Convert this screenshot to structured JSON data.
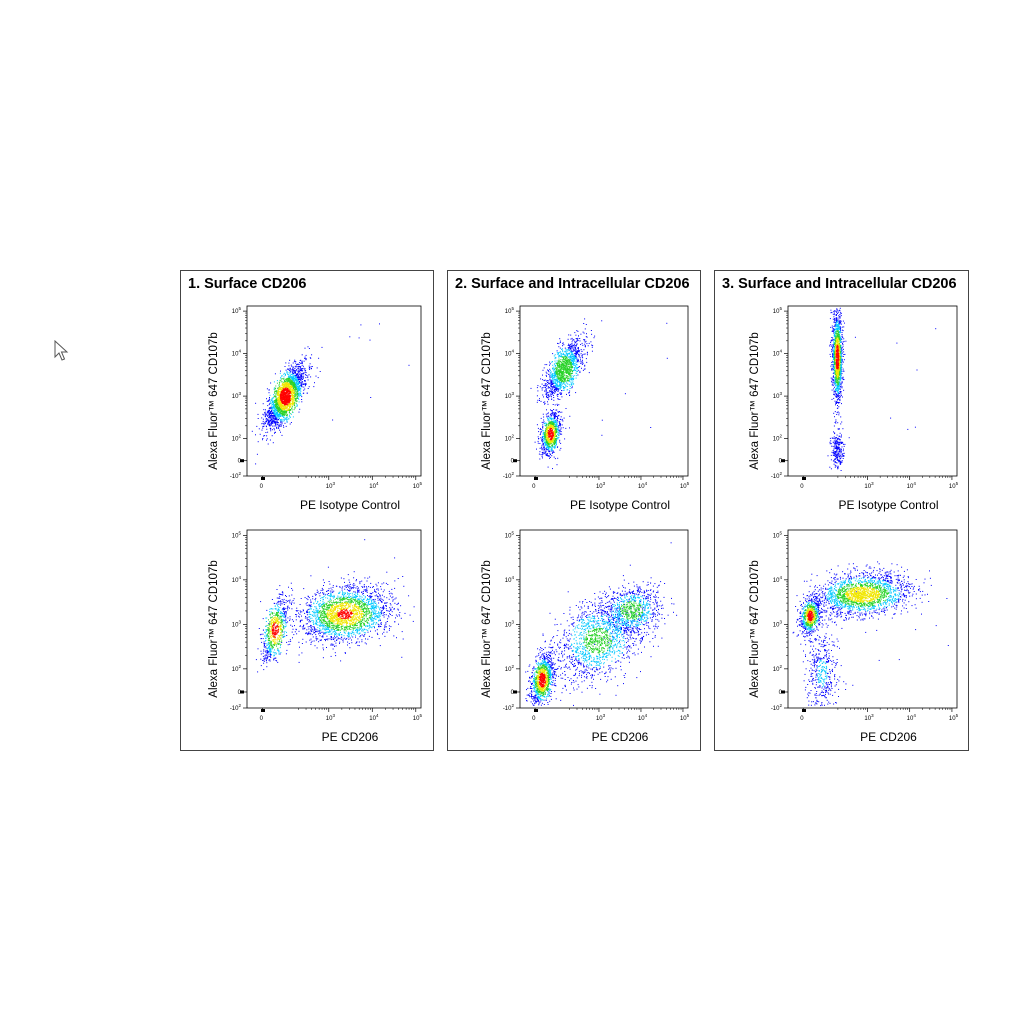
{
  "cursor_icon": "mouse-pointer-icon",
  "colors": {
    "low_density": "#0000ff",
    "mid_density": "#00c8ff",
    "mid_high_density": "#28d228",
    "high_density": "#f0e600",
    "peak_density": "#ff0000"
  },
  "panels": [
    {
      "title": "1. Surface CD206",
      "plots": [
        {
          "ylabel": "Alexa Fluor™ 647 CD107b",
          "xlabel": "PE Isotype Control"
        },
        {
          "ylabel": "Alexa Fluor™ 647 CD107b",
          "xlabel": "PE CD206"
        }
      ]
    },
    {
      "title": "2. Surface and Intracellular CD206",
      "plots": [
        {
          "ylabel": "Alexa Fluor™ 647 CD107b",
          "xlabel": "PE Isotype Control"
        },
        {
          "ylabel": "Alexa Fluor™ 647 CD107b",
          "xlabel": "PE CD206"
        }
      ]
    },
    {
      "title": "3. Surface and Intracellular CD206",
      "plots": [
        {
          "ylabel": "Alexa Fluor™ 647 CD107b",
          "xlabel": "PE Isotype Control"
        },
        {
          "ylabel": "Alexa Fluor™ 647 CD107b",
          "xlabel": "PE CD206"
        }
      ]
    }
  ],
  "chart_data": [
    {
      "type": "scatter",
      "title": "1. Surface CD206",
      "xlabel": "PE Isotype Control",
      "ylabel": "Alexa Fluor™ 647 CD107b",
      "x_scale": "biexponential",
      "y_scale": "biexponential",
      "x_ticks": [
        "0",
        "10^3",
        "10^4",
        "10^5"
      ],
      "y_ticks": [
        "10^5",
        "10^4",
        "10^3",
        "10^2",
        "0",
        "-10^2"
      ],
      "populations": [
        {
          "x_center": "~10^2",
          "y_center": "~2×10^3",
          "x_spread": "0–10^3",
          "y_spread": "10^2–3×10^4"
        }
      ]
    },
    {
      "type": "scatter",
      "title": "1. Surface CD206",
      "xlabel": "PE CD206",
      "ylabel": "Alexa Fluor™ 647 CD107b",
      "x_scale": "biexponential",
      "y_scale": "biexponential",
      "x_ticks": [
        "0",
        "10^3",
        "10^4",
        "10^5"
      ],
      "y_ticks": [
        "10^5",
        "10^4",
        "10^3",
        "10^2",
        "0",
        "-10^2"
      ],
      "populations": [
        {
          "x_center": "~10^2",
          "y_center": "~10^3",
          "x_spread": "0–5×10^2",
          "y_spread": "10^2–3×10^3"
        },
        {
          "x_center": "~3×10^3",
          "y_center": "~2×10^3",
          "x_spread": "5×10^2–3×10^4",
          "y_spread": "5×10^2–10^4"
        }
      ]
    },
    {
      "type": "scatter",
      "title": "2. Surface and Intracellular CD206",
      "xlabel": "PE Isotype Control",
      "ylabel": "Alexa Fluor™ 647 CD107b",
      "x_scale": "biexponential",
      "y_scale": "biexponential",
      "x_ticks": [
        "0",
        "10^3",
        "10^4",
        "10^5"
      ],
      "y_ticks": [
        "10^5",
        "10^4",
        "10^3",
        "10^2",
        "0",
        "-10^2"
      ],
      "populations": [
        {
          "x_center": "~0",
          "y_center": "~10^2",
          "x_spread": "0–10^2",
          "y_spread": "0–5×10^2"
        },
        {
          "x_center": "~2×10^2",
          "y_center": "~3×10^3",
          "x_spread": "10^2–10^3",
          "y_spread": "10^3–3×10^4"
        }
      ]
    },
    {
      "type": "scatter",
      "title": "2. Surface and Intracellular CD206",
      "xlabel": "PE CD206",
      "ylabel": "Alexa Fluor™ 647 CD107b",
      "x_scale": "biexponential",
      "y_scale": "biexponential",
      "x_ticks": [
        "0",
        "10^3",
        "10^4",
        "10^5"
      ],
      "y_ticks": [
        "10^5",
        "10^4",
        "10^3",
        "10^2",
        "0",
        "-10^2"
      ],
      "populations": [
        {
          "x_center": "~0",
          "y_center": "~50",
          "x_spread": "0–2×10^2",
          "y_spread": "0–5×10^2"
        },
        {
          "x_center": "~3×10^3",
          "y_center": "~2×10^3",
          "x_spread": "5×10^2–3×10^4",
          "y_spread": "5×10^2–10^4"
        }
      ]
    },
    {
      "type": "scatter",
      "title": "3. Surface and Intracellular CD206",
      "xlabel": "PE Isotype Control",
      "ylabel": "Alexa Fluor™ 647 CD107b",
      "x_scale": "biexponential",
      "y_scale": "biexponential",
      "x_ticks": [
        "0",
        "10^3",
        "10^4",
        "10^5"
      ],
      "y_ticks": [
        "10^5",
        "10^4",
        "10^3",
        "10^2",
        "0",
        "-10^2"
      ],
      "populations": [
        {
          "x_center": "~0",
          "y_center": "~3×10^3",
          "x_spread": "-50–50",
          "y_spread": "0–3×10^4"
        }
      ]
    },
    {
      "type": "scatter",
      "title": "3. Surface and Intracellular CD206",
      "xlabel": "PE CD206",
      "ylabel": "Alexa Fluor™ 647 CD107b",
      "x_scale": "biexponential",
      "y_scale": "biexponential",
      "x_ticks": [
        "0",
        "10^3",
        "10^4",
        "10^5"
      ],
      "y_ticks": [
        "10^5",
        "10^4",
        "10^3",
        "10^2",
        "0",
        "-10^2"
      ],
      "populations": [
        {
          "x_center": "~0",
          "y_center": "~2×10^3",
          "x_spread": "0–10^2",
          "y_spread": "5×10^2–5×10^3"
        },
        {
          "x_center": "~10^3",
          "y_center": "~8×10^3",
          "x_spread": "10^2–2×10^4",
          "y_spread": "3×10^3–2×10^4"
        }
      ]
    }
  ]
}
